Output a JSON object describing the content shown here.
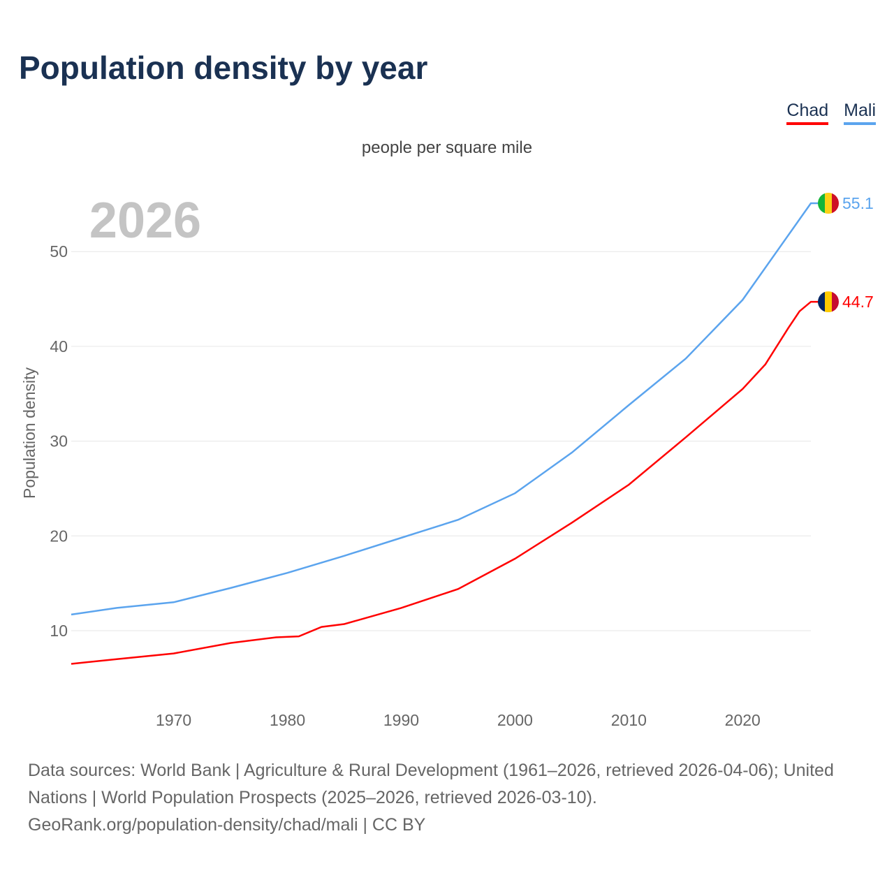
{
  "chart_data": {
    "type": "line",
    "title": "Population density by year",
    "subtitle": "people per square mile",
    "ylabel": "Population density",
    "xlabel": "",
    "year_label": "2026",
    "xlim": [
      1961,
      2026
    ],
    "ylim": [
      3,
      57
    ],
    "x_ticks": [
      "1970",
      "1980",
      "1990",
      "2000",
      "2010",
      "2020"
    ],
    "y_ticks": [
      "10",
      "20",
      "30",
      "40",
      "50"
    ],
    "grid": true,
    "legend_position": "top-right",
    "series": [
      {
        "name": "Chad",
        "color": "#ff0000",
        "end_label": "44.7",
        "x": [
          1961,
          1965,
          1970,
          1975,
          1979,
          1981,
          1983,
          1985,
          1990,
          1995,
          2000,
          2005,
          2010,
          2015,
          2020,
          2022,
          2024,
          2025,
          2026
        ],
        "y": [
          6.5,
          7.0,
          7.6,
          8.7,
          9.3,
          9.4,
          10.4,
          10.7,
          12.4,
          14.4,
          17.6,
          21.4,
          25.4,
          30.4,
          35.5,
          38.1,
          41.9,
          43.7,
          44.7
        ]
      },
      {
        "name": "Mali",
        "color": "#5ba4ee",
        "end_label": "55.1",
        "x": [
          1961,
          1965,
          1970,
          1975,
          1980,
          1985,
          1990,
          1995,
          2000,
          2005,
          2010,
          2015,
          2020,
          2023,
          2026
        ],
        "y": [
          11.7,
          12.4,
          13.0,
          14.5,
          16.1,
          17.9,
          19.8,
          21.7,
          24.5,
          28.8,
          33.8,
          38.7,
          44.9,
          50.0,
          55.1
        ]
      }
    ]
  },
  "footer": {
    "sources": "Data sources: World Bank | Agriculture & Rural Development (1961–2026, retrieved 2026-04-06); United Nations | World Population Prospects (2025–2026, retrieved 2026-03-10).",
    "credit": "GeoRank.org/population-density/chad/mali | CC BY"
  }
}
